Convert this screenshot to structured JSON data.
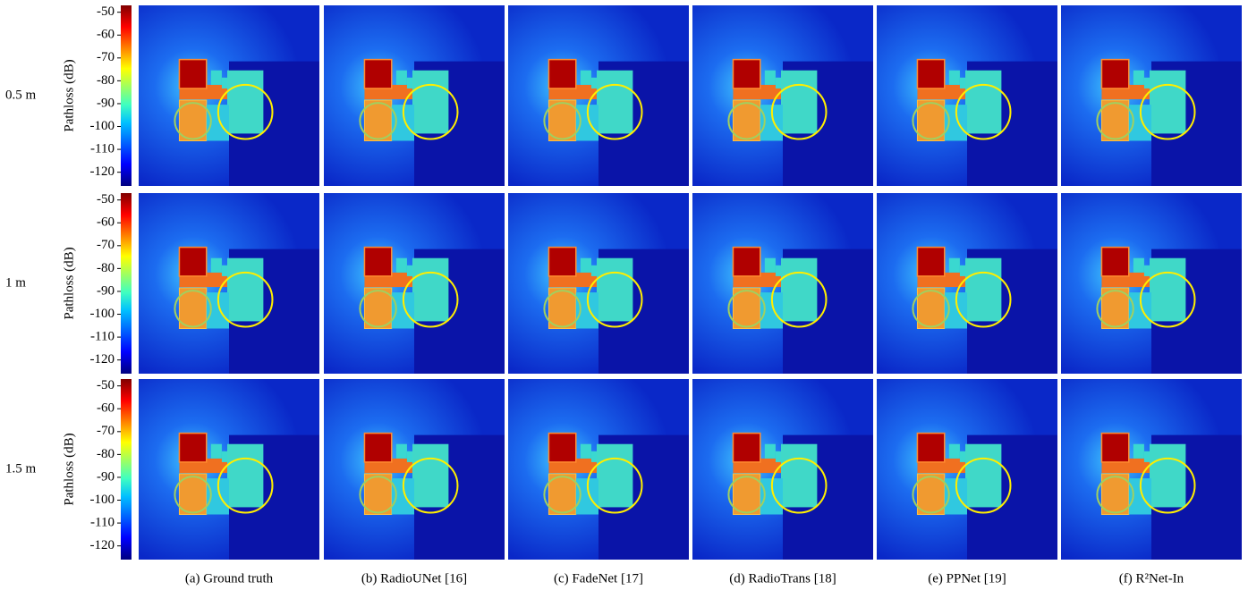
{
  "rows": [
    {
      "label": "0.5 m"
    },
    {
      "label": "1 m"
    },
    {
      "label": "1.5 m"
    }
  ],
  "colorbar": {
    "label": "Pathloss (dB)",
    "lim": [
      -47,
      -126
    ],
    "ticks": [
      -50,
      -60,
      -70,
      -80,
      -90,
      -100,
      -110,
      -120
    ]
  },
  "columns": [
    "(a) Ground truth",
    "(b) RadioUNet [16]",
    "(c) FadeNet [17]",
    "(d) RadioTrans [18]",
    "(e) PPNet [19]",
    "(f) R²Net-In"
  ]
}
